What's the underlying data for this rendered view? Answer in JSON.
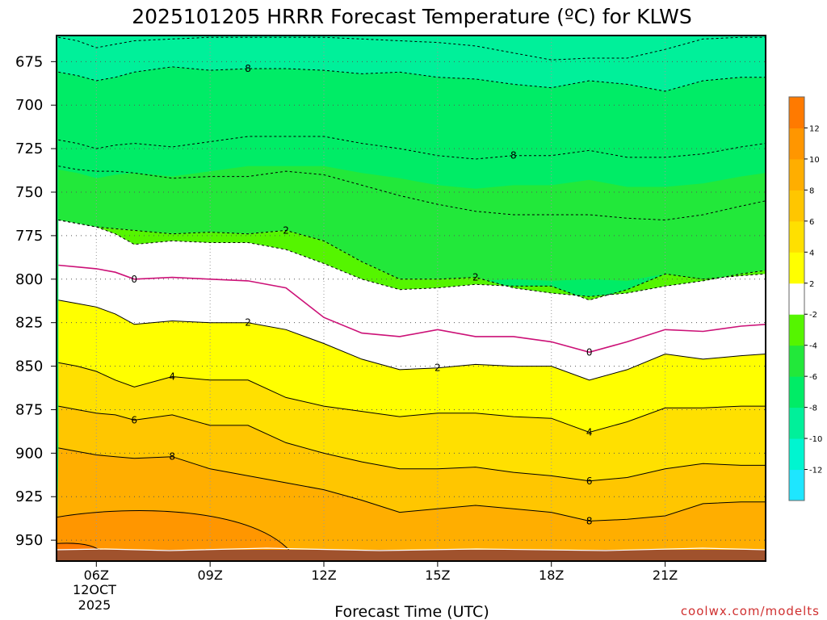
{
  "chart_data": {
    "type": "contour",
    "title": "2025101205 HRRR Forecast Temperature (ºC) for KLWS",
    "xlabel": "Forecast Time (UTC)",
    "ylabel": "",
    "credit": "coolwx.com/modelts",
    "x_unit": "hours UTC",
    "x_range": [
      4.95,
      23.65
    ],
    "x_ticks": [
      {
        "x": 6,
        "label": "06Z"
      },
      {
        "x": 9,
        "label": "09Z"
      },
      {
        "x": 12,
        "label": "12Z"
      },
      {
        "x": 15,
        "label": "15Z"
      },
      {
        "x": 18,
        "label": "18Z"
      },
      {
        "x": 21,
        "label": "21Z"
      }
    ],
    "x_date_lines": [
      "12OCT",
      "2025"
    ],
    "y_unit": "hPa",
    "y_range": [
      660,
      962
    ],
    "y_ticks": [
      675,
      700,
      725,
      750,
      775,
      800,
      825,
      850,
      875,
      900,
      925,
      950
    ],
    "grid": true,
    "ground_color": "#a0522d",
    "colorbar": {
      "levels": [
        -14,
        -12,
        -10,
        -8,
        -6,
        -4,
        -2,
        2,
        4,
        6,
        8,
        10,
        12,
        14
      ],
      "labels": [
        "-12",
        "-10",
        "-8",
        "-6",
        "-4",
        "-2",
        "2",
        "4",
        "6",
        "8",
        "10",
        "12"
      ],
      "colors": [
        "#1ee6ff",
        "#00f5d0",
        "#00f09a",
        "#00ec66",
        "#22e83a",
        "#55f500",
        "#ffffff",
        "#ffff00",
        "#ffe000",
        "#ffc600",
        "#ffae00",
        "#ff9600",
        "#ff7a00"
      ]
    },
    "x": [
      5,
      5.5,
      6,
      6.5,
      7,
      8,
      9,
      10,
      11,
      12,
      13,
      14,
      15,
      16,
      17,
      18,
      19,
      20,
      21,
      22,
      23,
      23.65
    ],
    "isotherms": [
      {
        "value": 8,
        "color": "#000000",
        "dashed": true,
        "label_x": 10,
        "p": [
          681,
          683,
          686,
          684,
          681,
          678,
          680,
          679,
          679,
          680,
          682,
          681,
          684,
          685,
          688,
          690,
          686,
          688,
          692,
          686,
          684,
          684
        ]
      },
      {
        "value": 8,
        "color": "#000000",
        "dashed": true,
        "label_x": 17,
        "p": [
          720,
          722,
          725,
          723,
          722,
          724,
          721,
          718,
          718,
          718,
          722,
          725,
          729,
          731,
          729,
          729,
          726,
          730,
          730,
          728,
          724,
          722
        ]
      },
      {
        "value": 2,
        "color": "#000000",
        "dashed": false,
        "label_x": 11,
        "p": [
          812,
          814,
          816,
          820,
          826,
          824,
          825,
          825,
          829,
          837,
          846,
          852,
          851,
          849,
          850,
          850,
          858,
          852,
          843,
          846,
          844,
          843
        ]
      },
      {
        "value": 4,
        "color": "#000000",
        "dashed": false,
        "label_x": 8,
        "p": [
          848,
          850,
          853,
          858,
          862,
          856,
          858,
          858,
          868,
          873,
          876,
          879,
          877,
          877,
          879,
          880,
          888,
          882,
          874,
          874,
          873,
          873
        ]
      },
      {
        "value": 6,
        "color": "#000000",
        "dashed": false,
        "label_x": 7,
        "p": [
          873,
          875,
          877,
          878,
          881,
          878,
          884,
          884,
          894,
          900,
          905,
          909,
          909,
          908,
          911,
          913,
          916,
          914,
          909,
          906,
          907,
          907
        ]
      },
      {
        "value": 8,
        "color": "#000000",
        "dashed": false,
        "label_x": 8,
        "p": [
          897,
          899,
          901,
          902,
          903,
          902,
          909,
          913,
          917,
          921,
          927,
          934,
          932,
          930,
          932,
          934,
          939,
          938,
          936,
          929,
          928,
          928
        ]
      },
      {
        "value": 0,
        "color": "#cc1177",
        "dashed": false,
        "label_x": 7,
        "p": [
          792,
          793,
          794,
          796,
          800,
          799,
          800,
          801,
          805,
          822,
          831,
          833,
          829,
          833,
          833,
          836,
          842,
          836,
          829,
          830,
          827,
          826
        ]
      }
    ],
    "fills": [
      {
        "value": 12,
        "p_top": 937,
        "x_end": 11.3
      },
      {
        "value": 10,
        "p_top": "8C line"
      },
      {
        "value": -8,
        "p_top": 660,
        "p_bottom": "upper 8 line"
      }
    ],
    "contour_labels": [
      "8",
      "8",
      "2",
      "0",
      "2",
      "4",
      "6",
      "8",
      "2",
      "0",
      "2",
      "4",
      "6",
      "8"
    ]
  }
}
